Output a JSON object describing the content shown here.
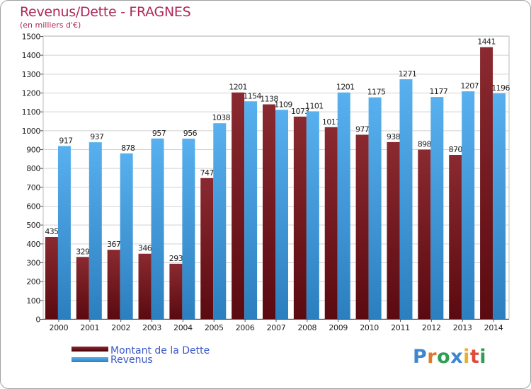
{
  "header": {
    "title": "Revenus/Dette - FRAGNES",
    "subtitle": "(en milliers d'€)"
  },
  "colors": {
    "dette": "#7e2228",
    "revenus": "#4aa3e6",
    "text_accent": "#b0285a",
    "legend_text": "#3b58c8"
  },
  "logo": {
    "letters": [
      "P",
      "r",
      "o",
      "x",
      "i",
      "t",
      "i"
    ],
    "colors": [
      "#3f86d0",
      "#e07a2a",
      "#2e9e55",
      "#3f86d0",
      "#e8b030",
      "#e04a3a",
      "#2e9e55"
    ]
  },
  "chart_data": {
    "type": "bar",
    "categories": [
      "2000",
      "2001",
      "2002",
      "2003",
      "2004",
      "2005",
      "2006",
      "2007",
      "2008",
      "2009",
      "2010",
      "2011",
      "2012",
      "2013",
      "2014"
    ],
    "series": [
      {
        "name": "Montant de la Dette",
        "values": [
          435,
          329,
          367,
          346,
          293,
          747,
          1201,
          1138,
          1073,
          1017,
          977,
          938,
          898,
          870,
          1441
        ]
      },
      {
        "name": "Revenus",
        "values": [
          917,
          937,
          878,
          957,
          956,
          1038,
          1154,
          1109,
          1101,
          1201,
          1175,
          1271,
          1177,
          1207,
          1196
        ]
      }
    ],
    "ylim": [
      0,
      1500
    ],
    "yticks": [
      0,
      100,
      200,
      300,
      400,
      500,
      600,
      700,
      800,
      900,
      1000,
      1100,
      1200,
      1300,
      1400,
      1500
    ],
    "grid": true,
    "legend": "bottom-left"
  }
}
